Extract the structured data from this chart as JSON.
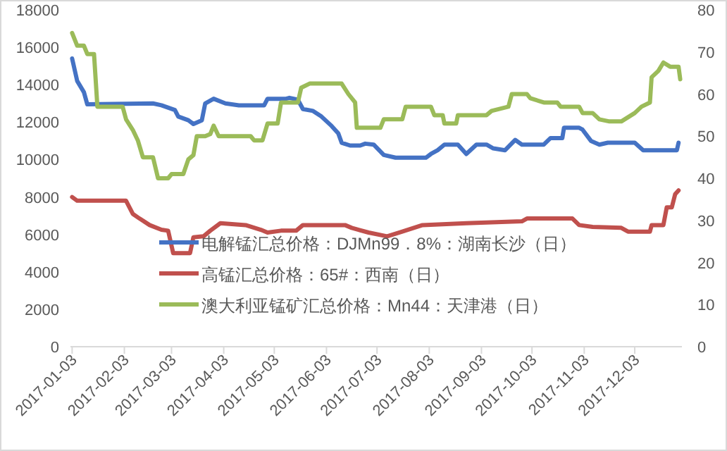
{
  "chart_data": {
    "type": "line",
    "xlim": [
      "2017-01-02",
      "2017-12-31"
    ],
    "xticks": [
      {
        "value": "2017-01-03",
        "label": "2017-01-03"
      },
      {
        "value": "2017-02-03",
        "label": "2017-02-03"
      },
      {
        "value": "2017-03-03",
        "label": "2017-03-03"
      },
      {
        "value": "2017-04-03",
        "label": "2017-04-03"
      },
      {
        "value": "2017-05-03",
        "label": "2017-05-03"
      },
      {
        "value": "2017-06-03",
        "label": "2017-06-03"
      },
      {
        "value": "2017-07-03",
        "label": "2017-07-03"
      },
      {
        "value": "2017-08-03",
        "label": "2017-08-03"
      },
      {
        "value": "2017-09-03",
        "label": "2017-09-03"
      },
      {
        "value": "2017-10-03",
        "label": "2017-10-03"
      },
      {
        "value": "2017-11-03",
        "label": "2017-11-03"
      },
      {
        "value": "2017-12-03",
        "label": "2017-12-03"
      }
    ],
    "ylim": [
      0,
      18000
    ],
    "yticks": [
      0,
      2000,
      4000,
      6000,
      8000,
      10000,
      12000,
      14000,
      16000,
      18000
    ],
    "y2lim": [
      0,
      80
    ],
    "y2ticks": [
      0,
      10,
      20,
      30,
      40,
      50,
      60,
      70,
      80
    ],
    "grid": false,
    "legend": "bottom",
    "marker": "none",
    "line_style": "solid",
    "series": [
      {
        "name": "电解锰汇总价格：DJMn99．8%：湖南长沙（日）",
        "color": "#4472c4",
        "x": [
          "2017-01-03",
          "2017-01-06",
          "2017-01-10",
          "2017-01-12",
          "2017-02-20",
          "2017-02-25",
          "2017-03-05",
          "2017-03-07",
          "2017-03-13",
          "2017-03-16",
          "2017-03-21",
          "2017-03-23",
          "2017-03-28",
          "2017-04-04",
          "2017-04-12",
          "2017-04-27",
          "2017-04-29",
          "2017-05-10",
          "2017-05-12",
          "2017-05-17",
          "2017-05-20",
          "2017-05-26",
          "2017-05-31",
          "2017-06-06",
          "2017-06-10",
          "2017-06-12",
          "2017-06-17",
          "2017-06-23",
          "2017-06-26",
          "2017-07-01",
          "2017-07-07",
          "2017-07-14",
          "2017-08-01",
          "2017-08-04",
          "2017-08-08",
          "2017-08-12",
          "2017-08-20",
          "2017-08-25",
          "2017-08-31",
          "2017-09-06",
          "2017-09-10",
          "2017-09-17",
          "2017-09-23",
          "2017-09-27",
          "2017-10-10",
          "2017-10-14",
          "2017-10-21",
          "2017-10-22",
          "2017-10-31",
          "2017-11-02",
          "2017-11-07",
          "2017-11-12",
          "2017-11-17",
          "2017-12-03",
          "2017-12-08",
          "2017-12-28",
          "2017-12-29"
        ],
        "values": [
          15400,
          14200,
          13600,
          12950,
          13000,
          12900,
          12650,
          12300,
          12100,
          11900,
          12100,
          13000,
          13250,
          13000,
          12900,
          12900,
          13250,
          13250,
          13300,
          13200,
          12700,
          12600,
          12300,
          11800,
          11400,
          10900,
          10750,
          10750,
          10850,
          10800,
          10250,
          10100,
          10100,
          10300,
          10500,
          10800,
          10800,
          10300,
          10800,
          10800,
          10600,
          10500,
          11050,
          10800,
          10800,
          11150,
          11150,
          11700,
          11700,
          11600,
          11000,
          10800,
          10900,
          10900,
          10500,
          10500,
          10900
        ]
      },
      {
        "name": "高锰汇总价格：65#：西南（日）",
        "color": "#c0504d",
        "x": [
          "2017-01-03",
          "2017-01-06",
          "2017-02-04",
          "2017-02-08",
          "2017-02-12",
          "2017-02-18",
          "2017-02-25",
          "2017-03-01",
          "2017-03-04",
          "2017-03-14",
          "2017-03-16",
          "2017-03-22",
          "2017-03-26",
          "2017-04-01",
          "2017-04-16",
          "2017-04-25",
          "2017-04-29",
          "2017-05-07",
          "2017-05-16",
          "2017-05-20",
          "2017-06-14",
          "2017-06-18",
          "2017-06-28",
          "2017-07-09",
          "2017-07-18",
          "2017-07-30",
          "2017-08-25",
          "2017-09-27",
          "2017-09-30",
          "2017-10-27",
          "2017-10-31",
          "2017-11-08",
          "2017-11-25",
          "2017-11-29",
          "2017-12-12",
          "2017-12-13",
          "2017-12-20",
          "2017-12-22",
          "2017-12-25",
          "2017-12-27",
          "2017-12-29"
        ],
        "values": [
          8000,
          7800,
          7800,
          7100,
          6850,
          6500,
          6250,
          6200,
          5000,
          5000,
          5850,
          5900,
          6200,
          6600,
          6500,
          6250,
          6100,
          6200,
          6200,
          6500,
          6500,
          6350,
          6100,
          5900,
          6150,
          6500,
          6600,
          6700,
          6850,
          6850,
          6500,
          6400,
          6350,
          6150,
          6150,
          6500,
          6500,
          7450,
          7450,
          8150,
          8350
        ]
      },
      {
        "name": "澳大利亚锰矿汇总价格：Mn44：天津港（日）",
        "color": "#9bbb59",
        "axis": "y2",
        "x": [
          "2017-01-03",
          "2017-01-06",
          "2017-01-10",
          "2017-01-12",
          "2017-01-16",
          "2017-01-18",
          "2017-02-02",
          "2017-02-04",
          "2017-02-08",
          "2017-02-11",
          "2017-02-14",
          "2017-02-20",
          "2017-02-23",
          "2017-03-01",
          "2017-03-03",
          "2017-03-10",
          "2017-03-13",
          "2017-03-16",
          "2017-03-18",
          "2017-03-23",
          "2017-03-26",
          "2017-03-28",
          "2017-03-31",
          "2017-04-19",
          "2017-04-21",
          "2017-04-26",
          "2017-04-29",
          "2017-05-05",
          "2017-05-07",
          "2017-05-17",
          "2017-05-19",
          "2017-05-24",
          "2017-06-12",
          "2017-06-16",
          "2017-06-20",
          "2017-06-21",
          "2017-07-05",
          "2017-07-07",
          "2017-07-18",
          "2017-07-20",
          "2017-08-04",
          "2017-08-06",
          "2017-08-11",
          "2017-08-12",
          "2017-08-19",
          "2017-08-20",
          "2017-09-06",
          "2017-09-09",
          "2017-09-19",
          "2017-09-21",
          "2017-09-30",
          "2017-10-02",
          "2017-10-10",
          "2017-10-18",
          "2017-10-20",
          "2017-10-31",
          "2017-11-02",
          "2017-11-08",
          "2017-11-12",
          "2017-11-18",
          "2017-11-25",
          "2017-11-29",
          "2017-12-03",
          "2017-12-07",
          "2017-12-12",
          "2017-12-13",
          "2017-12-17",
          "2017-12-20",
          "2017-12-24",
          "2017-12-29",
          "2017-12-30"
        ],
        "values": [
          74.5,
          71.5,
          71.5,
          69.5,
          69.5,
          57,
          57,
          54,
          51.5,
          49,
          45,
          45,
          40,
          40,
          41,
          41,
          44.5,
          45.5,
          50,
          50,
          50.5,
          52.5,
          50,
          50,
          49,
          49,
          53,
          53,
          58,
          58,
          61.5,
          62.5,
          62.5,
          60,
          58,
          52,
          52,
          54,
          54,
          57,
          57,
          55,
          55,
          53,
          53,
          55,
          55,
          56,
          57,
          60,
          60,
          59,
          58,
          58,
          57,
          57,
          55.5,
          55.5,
          54,
          53.5,
          53.5,
          54.5,
          55.5,
          57,
          58,
          64,
          65.5,
          67.5,
          66.5,
          66.5,
          63.5
        ]
      }
    ]
  }
}
